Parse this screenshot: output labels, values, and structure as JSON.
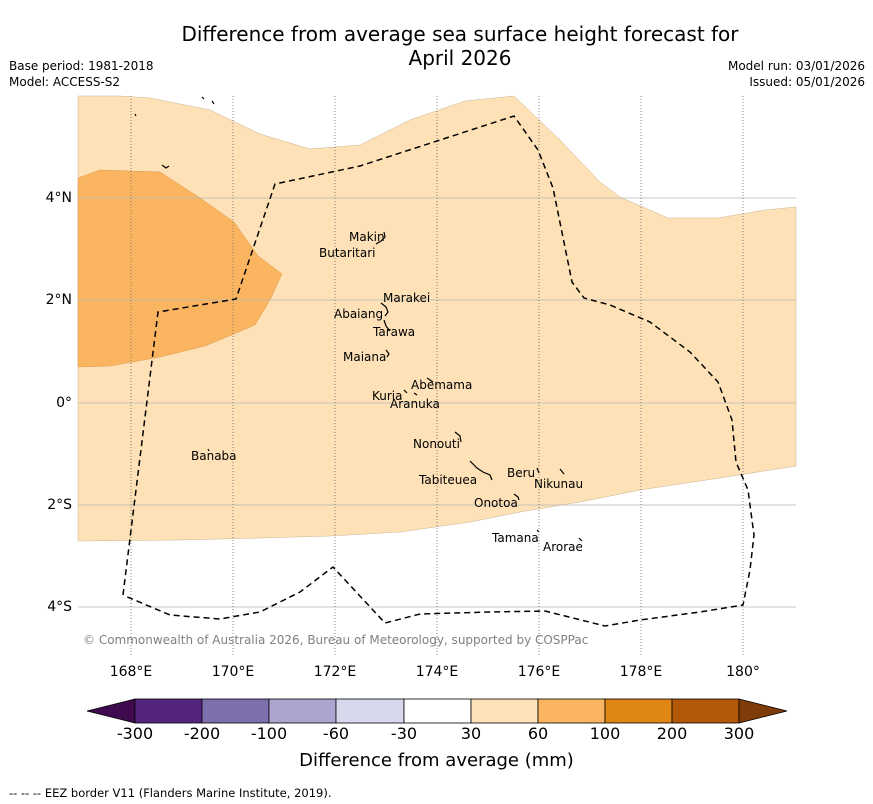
{
  "title_line1": "Difference from average sea surface height forecast for",
  "title_line2": "April 2026",
  "meta": {
    "base_period": "Base period: 1981-2018",
    "model": "Model: ACCESS-S2",
    "model_run": "Model run: 03/01/2026",
    "issued": "Issued: 05/01/2026"
  },
  "map": {
    "lat_labels": [
      "4°N",
      "2°N",
      "0°",
      "2°S",
      "4°S"
    ],
    "lon_labels": [
      "168°E",
      "170°E",
      "172°E",
      "174°E",
      "176°E",
      "178°E",
      "180°"
    ],
    "places": [
      {
        "name": "Makin"
      },
      {
        "name": "Butaritari"
      },
      {
        "name": "Marakei"
      },
      {
        "name": "Abaiang"
      },
      {
        "name": "Tarawa"
      },
      {
        "name": "Maiana"
      },
      {
        "name": "Abemama"
      },
      {
        "name": "Kuria"
      },
      {
        "name": "Aranuka"
      },
      {
        "name": "Nonouti"
      },
      {
        "name": "Banaba"
      },
      {
        "name": "Tabiteuea"
      },
      {
        "name": "Beru"
      },
      {
        "name": "Nikunau"
      },
      {
        "name": "Onotoa"
      },
      {
        "name": "Tamana"
      },
      {
        "name": "Arorae"
      }
    ],
    "copyright": "© Commonwealth of Australia 2026, Bureau of Meteorology, supported by COSPPac"
  },
  "colorbar": {
    "ticks": [
      "-300",
      "-200",
      "-100",
      "-60",
      "-30",
      "30",
      "60",
      "100",
      "200",
      "300"
    ],
    "colors": [
      "#3f0a4e",
      "#54257f",
      "#7e6fad",
      "#ada5d0",
      "#d8d8ec",
      "#ffffff",
      "#fee1b7",
      "#fbb560",
      "#e08614",
      "#b35806",
      "#7f3b08"
    ],
    "label": "Difference from average (mm)"
  },
  "fill_colors": {
    "band_30_60": "#fee1b7",
    "band_60_100": "#fbb560"
  },
  "footer": "--  --  -- EEZ border V11 (Flanders Marine Institute, 2019)."
}
